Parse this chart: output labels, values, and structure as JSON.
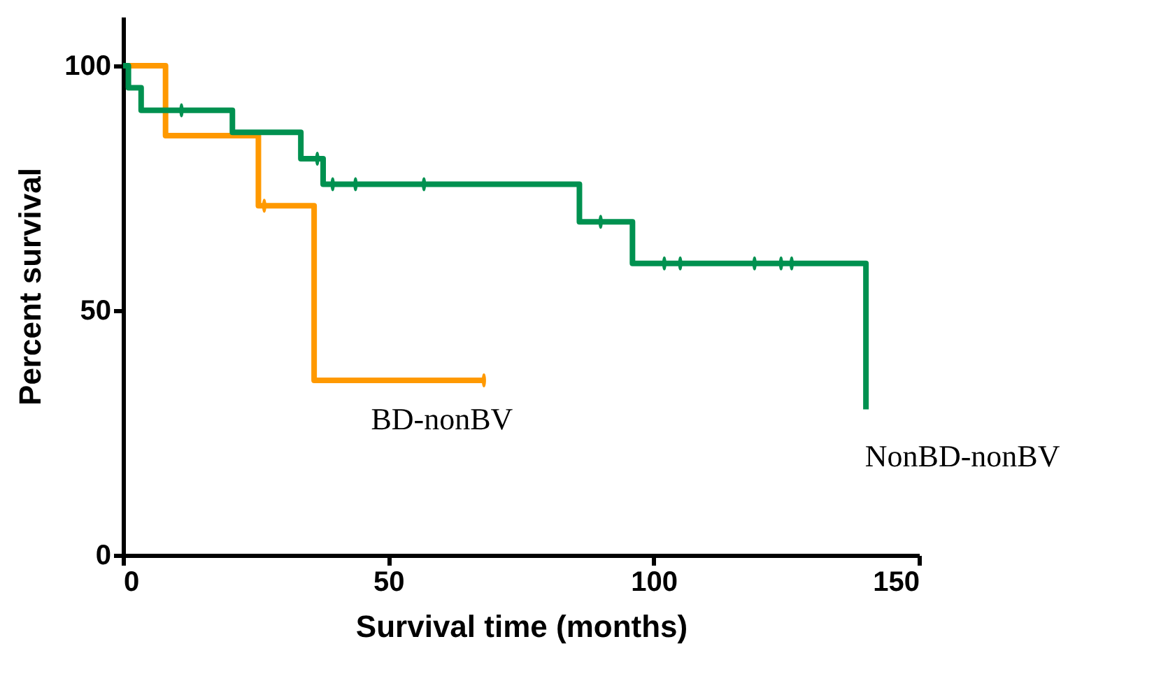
{
  "chart_data": {
    "type": "step",
    "xlabel": "Survival time (months)",
    "ylabel": "Percent survival",
    "xlim": [
      0,
      150
    ],
    "xticks": [
      0,
      50,
      100,
      150
    ],
    "ylim": [
      0,
      110
    ],
    "yticks": [
      0,
      50,
      100
    ],
    "grid": false,
    "series": [
      {
        "name": "BD-nonBV",
        "color": "#ff9900",
        "x": [
          0,
          8,
          25.5,
          36,
          68
        ],
        "values": [
          100,
          85.7,
          71.4,
          35.7,
          35.7
        ]
      },
      {
        "name": "NonBD-nonBV",
        "color": "#009150",
        "x": [
          0,
          1,
          3.4,
          20.6,
          33.5,
          37.7,
          86,
          96,
          140,
          140
        ],
        "values": [
          100,
          95.5,
          90.9,
          86.4,
          81,
          75.8,
          68.1,
          59.6,
          59.6,
          29.8
        ]
      },
      {
        "type": "scatter",
        "color": "#ff9900",
        "x": [
          26.6,
          68
        ],
        "values": [
          71.4,
          35.7
        ]
      },
      {
        "type": "scatter",
        "color": "#009150",
        "x": [
          11,
          36.6,
          39.5,
          43.8,
          56.7,
          90,
          102,
          105,
          119,
          124,
          126
        ],
        "values": [
          90.9,
          81,
          75.8,
          75.8,
          75.8,
          68.1,
          59.6,
          59.6,
          59.6,
          59.6,
          59.6
        ]
      }
    ]
  }
}
